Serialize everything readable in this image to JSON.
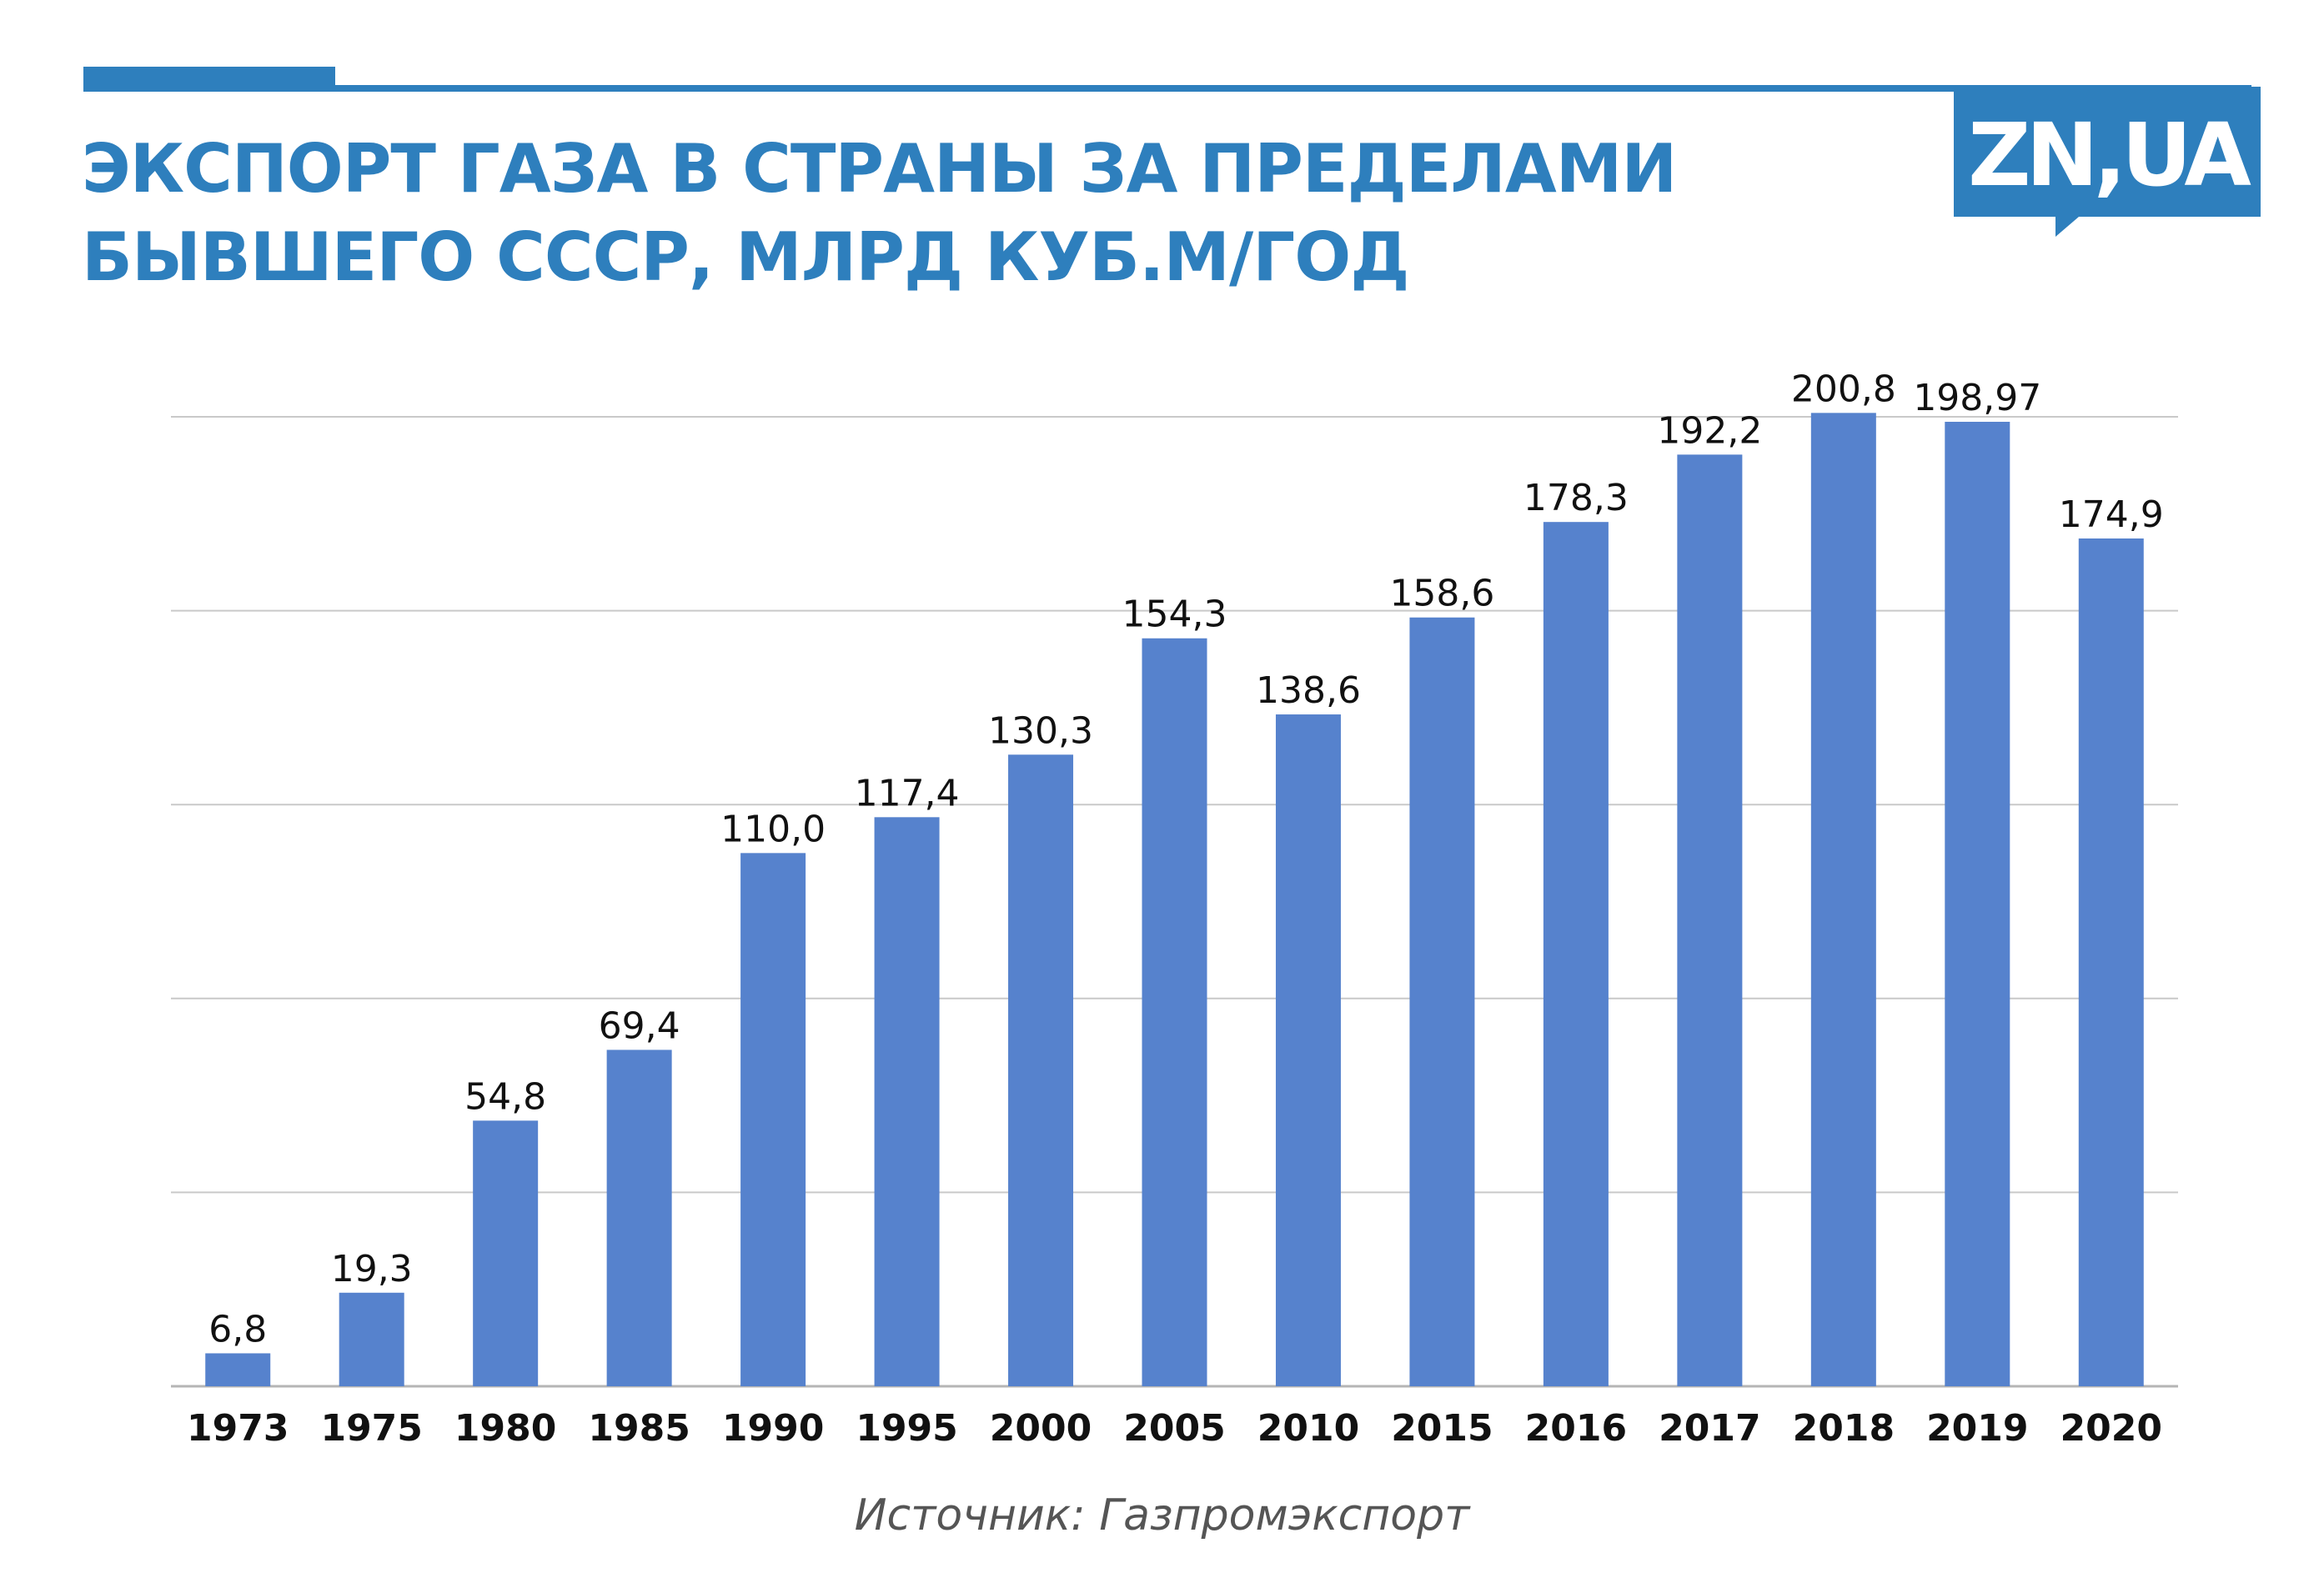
{
  "brand": {
    "accent_color": "#2e7fbd",
    "bar_color": "#5682cd",
    "logo_text": "ZN,UA"
  },
  "header": {
    "title_line1": "ЭКСПОРТ ГАЗА В СТРАНЫ ЗА ПРЕДЕЛАМИ",
    "title_line2": "БЫВШЕГО СССР, МЛРД КУБ.М/ГОД"
  },
  "footer": {
    "source": "Источник: Газпромэкспорт"
  },
  "chart_data": {
    "type": "bar",
    "title": "ЭКСПОРТ ГАЗА В СТРАНЫ ЗА ПРЕДЕЛАМИ БЫВШЕГО СССР, МЛРД КУБ.М/ГОД",
    "categories": [
      "1973",
      "1975",
      "1980",
      "1985",
      "1990",
      "1995",
      "2000",
      "2005",
      "2010",
      "2015",
      "2016",
      "2017",
      "2018",
      "2019",
      "2020"
    ],
    "values": [
      6.8,
      19.3,
      54.8,
      69.4,
      110.0,
      117.4,
      130.3,
      154.3,
      138.6,
      158.6,
      178.3,
      192.2,
      200.8,
      198.97,
      174.9
    ],
    "value_labels": [
      "6,8",
      "19,3",
      "54,8",
      "69,4",
      "110,0",
      "117,4",
      "130,3",
      "154,3",
      "138,6",
      "158,6",
      "178,3",
      "192,2",
      "200,8",
      "198,97",
      "174,9"
    ],
    "ylim": [
      0,
      200
    ],
    "gridlines": [
      0,
      40,
      80,
      120,
      160,
      200
    ],
    "grid": true,
    "y_tick_labels_shown": false,
    "xlabel": "",
    "ylabel": ""
  }
}
